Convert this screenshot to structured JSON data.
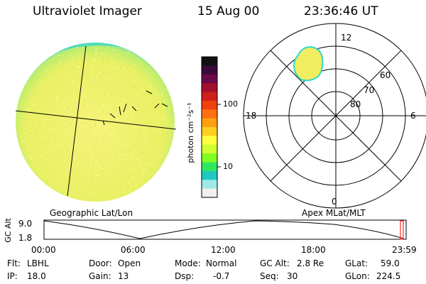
{
  "header": {
    "instrument": "Ultraviolet Imager",
    "date": "15 Aug 00",
    "time": "23:36:46 UT"
  },
  "colorbar": {
    "unit_label": "photon cm⁻²s⁻¹",
    "ticks": [
      "100",
      "10"
    ],
    "colors": [
      "#111111",
      "#3a0a3a",
      "#6a0a4a",
      "#a0102a",
      "#d0201a",
      "#f04010",
      "#ff7010",
      "#ffa010",
      "#ffd020",
      "#ffff40",
      "#d0ff30",
      "#80ff20",
      "#30e860",
      "#20c8c0",
      "#a0e8e8",
      "#f0f0f0"
    ]
  },
  "polar": {
    "mlt_labels": {
      "top": "12",
      "bottom": "0",
      "left": "18",
      "right": "6"
    },
    "lat_labels": [
      "60",
      "70",
      "80"
    ]
  },
  "panel_labels": {
    "left": "Geographic Lat/Lon",
    "right": "Apex MLat/MLT"
  },
  "timeline": {
    "y_axis_label": "GC Alt",
    "y_ticks": [
      "9.0",
      "1.8"
    ],
    "x_ticks": [
      "00:00",
      "06:00",
      "12:00",
      "18:00",
      "23:59"
    ]
  },
  "info": {
    "row1": [
      {
        "key": "Flt:",
        "value": "LBHL"
      },
      {
        "key": "Door:",
        "value": "Open"
      },
      {
        "key": "Mode:",
        "value": "Normal"
      },
      {
        "key": "GC Alt:",
        "value": "2.8 Re"
      },
      {
        "key": "GLat:",
        "value": "59.0"
      }
    ],
    "row2": [
      {
        "key": "IP:",
        "value": "18.0"
      },
      {
        "key": "Gain:",
        "value": "13"
      },
      {
        "key": "Dsp:",
        "value": "-0.7"
      },
      {
        "key": "Seq:",
        "value": "30"
      },
      {
        "key": "GLon:",
        "value": "224.5"
      }
    ]
  },
  "accent": {
    "disk": "#f4f070",
    "aurora": "#ffff60",
    "curve": "#000000",
    "marker": "#ff0000"
  }
}
